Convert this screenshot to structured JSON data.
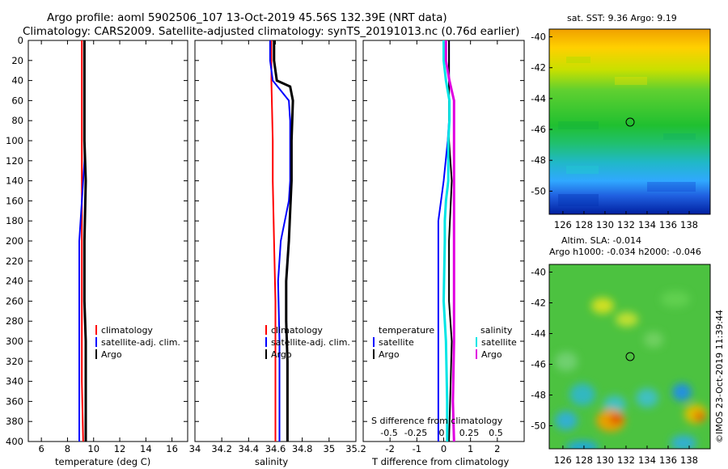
{
  "title": {
    "line1": "Argo profile: aoml 5902506_107 13-Oct-2019 45.56S 132.39E (NRT data)",
    "line2": "Climatology: CARS2009. Satellite-adjusted climatology: synTS_20191013.nc (0.76d earlier)"
  },
  "colors": {
    "climatology": "#ff0000",
    "satellite": "#0000ff",
    "argo": "#000000",
    "sat_salinity": "#00e5e5",
    "argo_salinity": "#e000e0"
  },
  "chart_data": [
    {
      "type": "line",
      "name": "temperature",
      "xlabel": "temperature (deg C)",
      "xlim": [
        5,
        17.2
      ],
      "ylim": [
        0,
        400
      ],
      "xticks": [
        6,
        8,
        10,
        12,
        14,
        16
      ],
      "yticks": [
        0,
        20,
        40,
        60,
        80,
        100,
        120,
        140,
        160,
        180,
        200,
        220,
        240,
        260,
        280,
        300,
        320,
        340,
        360,
        380,
        400
      ],
      "legend": [
        "climatology",
        "satellite-adj. clim.",
        "Argo"
      ],
      "series": [
        {
          "name": "climatology",
          "depth": [
            0,
            20,
            40,
            60,
            80,
            100,
            140,
            200,
            280,
            340,
            400
          ],
          "values": [
            9.1,
            9.1,
            9.1,
            9.1,
            9.1,
            9.1,
            9.1,
            9.1,
            9.1,
            9.1,
            9.2
          ]
        },
        {
          "name": "satellite-adj. clim.",
          "depth": [
            0,
            20,
            40,
            60,
            80,
            100,
            120,
            140,
            160,
            200,
            260,
            300,
            340,
            400
          ],
          "values": [
            9.3,
            9.3,
            9.3,
            9.3,
            9.3,
            9.3,
            9.3,
            9.2,
            9.1,
            8.9,
            8.9,
            8.9,
            8.9,
            8.9
          ]
        },
        {
          "name": "Argo",
          "depth": [
            0,
            20,
            40,
            60,
            80,
            100,
            140,
            200,
            260,
            300,
            360,
            400
          ],
          "values": [
            9.3,
            9.3,
            9.3,
            9.3,
            9.3,
            9.3,
            9.4,
            9.3,
            9.3,
            9.4,
            9.4,
            9.4
          ]
        }
      ]
    },
    {
      "type": "line",
      "name": "salinity",
      "xlabel": "salinity",
      "xlim": [
        34.0,
        35.2
      ],
      "ylim": [
        0,
        400
      ],
      "xticks": [
        "34",
        "34.2",
        "34.4",
        "34.6",
        "34.8",
        "35",
        "35.2"
      ],
      "legend": [
        "climatology",
        "satellite-adj. clim.",
        "Argo"
      ],
      "series": [
        {
          "name": "climatology",
          "depth": [
            0,
            40,
            100,
            140,
            200,
            260,
            320,
            400
          ],
          "values": [
            34.57,
            34.57,
            34.58,
            34.58,
            34.59,
            34.6,
            34.6,
            34.6
          ]
        },
        {
          "name": "satellite-adj. clim.",
          "depth": [
            0,
            20,
            40,
            60,
            80,
            100,
            140,
            160,
            180,
            200,
            240,
            300,
            360,
            400
          ],
          "values": [
            34.56,
            34.56,
            34.58,
            34.7,
            34.71,
            34.71,
            34.71,
            34.7,
            34.67,
            34.64,
            34.62,
            34.63,
            34.63,
            34.63
          ]
        },
        {
          "name": "Argo",
          "depth": [
            0,
            20,
            40,
            46,
            60,
            100,
            140,
            200,
            240,
            280,
            320,
            360,
            400
          ],
          "values": [
            34.59,
            34.59,
            34.61,
            34.71,
            34.73,
            34.72,
            34.72,
            34.7,
            34.68,
            34.68,
            34.69,
            34.69,
            34.69
          ]
        }
      ]
    },
    {
      "type": "line",
      "name": "difference",
      "xlabel": "T difference from climatology",
      "xlim": [
        -3,
        3
      ],
      "ylim": [
        0,
        400
      ],
      "xticks": [
        "-2",
        "-1",
        "0",
        "1",
        "2"
      ],
      "s_title": "S difference from climatology",
      "s_ticks": [
        "-0.5",
        "-0.25",
        "0",
        "0.25",
        "0.5"
      ],
      "legend_t_header": "temperature",
      "legend_s_header": "salinity",
      "legend_t": [
        "satellite",
        "Argo"
      ],
      "legend_s": [
        "satellite",
        "Argo"
      ],
      "series": [
        {
          "name": "T satellite",
          "depth": [
            0,
            20,
            40,
            60,
            80,
            100,
            140,
            180,
            200,
            260,
            300,
            400
          ],
          "values": [
            0.2,
            0.2,
            0.2,
            0.2,
            0.2,
            0.15,
            0.0,
            -0.2,
            -0.2,
            -0.2,
            -0.2,
            -0.2
          ]
        },
        {
          "name": "T Argo",
          "depth": [
            0,
            20,
            40,
            60,
            80,
            100,
            140,
            200,
            260,
            300,
            400
          ],
          "values": [
            0.2,
            0.2,
            0.2,
            0.2,
            0.2,
            0.2,
            0.3,
            0.2,
            0.2,
            0.3,
            0.2
          ]
        },
        {
          "name": "S satellite",
          "depth": [
            0,
            20,
            40,
            60,
            80,
            100,
            140,
            160,
            180,
            200,
            260,
            300,
            360,
            400
          ],
          "values": [
            0.0,
            0.0,
            0.02,
            0.05,
            0.05,
            0.04,
            0.04,
            0.02,
            0.01,
            0.01,
            0.0,
            0.02,
            0.03,
            0.03
          ]
        },
        {
          "name": "S Argo",
          "depth": [
            0,
            20,
            40,
            60,
            80,
            100,
            140,
            200,
            260,
            300,
            360,
            400
          ],
          "values": [
            0.02,
            0.02,
            0.05,
            0.09,
            0.09,
            0.09,
            0.09,
            0.09,
            0.09,
            0.09,
            0.08,
            0.09
          ]
        }
      ]
    },
    {
      "type": "heatmap",
      "name": "sst-map",
      "title": "sat. SST: 9.36 Argo: 9.19",
      "xticks": [
        "126",
        "128",
        "130",
        "132",
        "134",
        "136",
        "138"
      ],
      "yticks": [
        "-40",
        "-42",
        "-44",
        "-46",
        "-48",
        "-50"
      ],
      "lon_range": [
        124.7,
        140.0
      ],
      "lat_range": [
        -51.5,
        -39.5
      ],
      "profile": {
        "lon": 132.39,
        "lat": -45.56
      }
    },
    {
      "type": "heatmap",
      "name": "sla-map",
      "title": "Altim. SLA: -0.014",
      "subtitle": "Argo h1000: -0.034 h2000: -0.046",
      "xticks": [
        "126",
        "128",
        "130",
        "132",
        "134",
        "136",
        "138"
      ],
      "yticks": [
        "-40",
        "-42",
        "-44",
        "-46",
        "-48",
        "-50"
      ],
      "lon_range": [
        124.7,
        140.0
      ],
      "lat_range": [
        -51.5,
        -39.5
      ],
      "profile": {
        "lon": 132.39,
        "lat": -45.56
      }
    }
  ],
  "footer": "©IMOS 23-Oct-2019 11:39:44"
}
